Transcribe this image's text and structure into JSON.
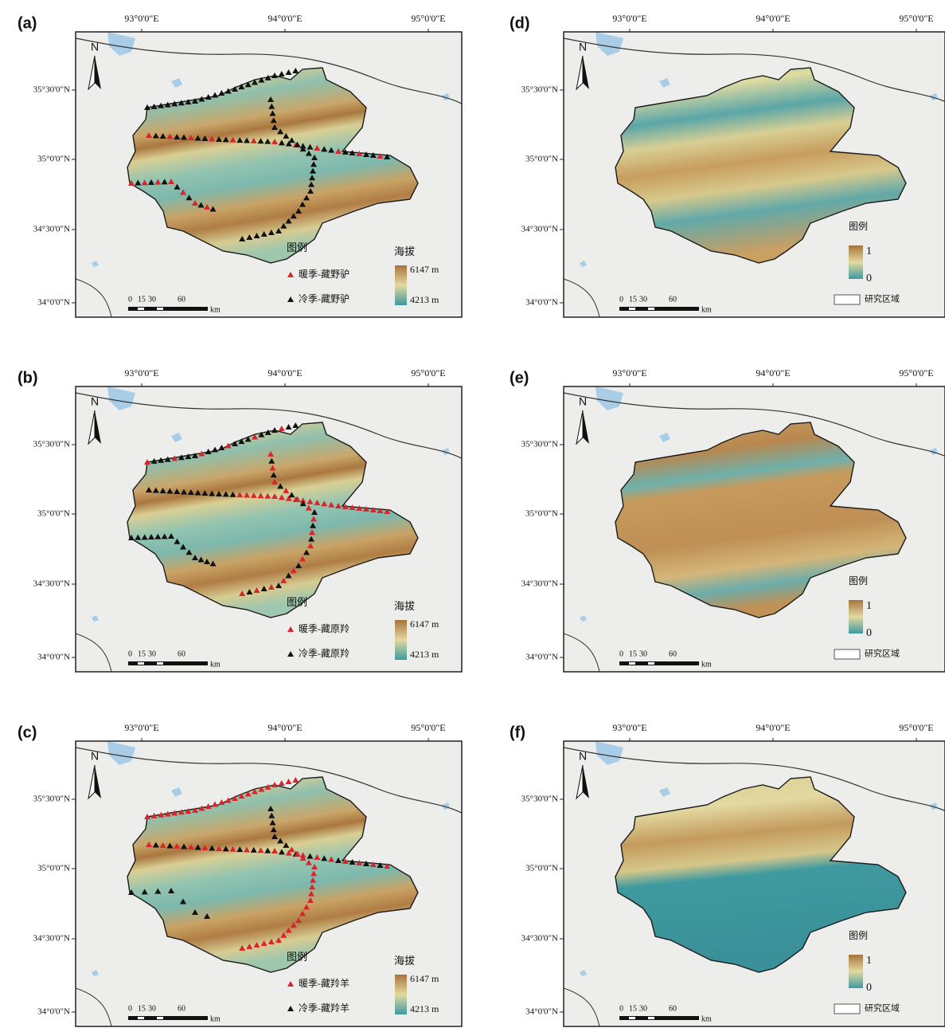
{
  "panels": [
    {
      "label": "(a)",
      "lon_labels": [
        "93°0'0\"E",
        "94°0'0\"E",
        "95°0'0\"E"
      ],
      "lat_labels": [
        "35°30'0\"N",
        "35°0'0\"N",
        "34°30'0\"N",
        "34°0'0\"N"
      ],
      "north": "N",
      "scale": [
        "0",
        "15",
        "30",
        "60",
        "km"
      ],
      "legend": {
        "title": "图例",
        "items": [
          "暖季-藏野驴",
          "冷季-藏野驴"
        ],
        "ramp_title": "海拔",
        "ramp_max": "6147 m",
        "ramp_min": "4213 m"
      }
    },
    {
      "label": "(b)",
      "lon_labels": [
        "93°0'0\"E",
        "94°0'0\"E",
        "95°0'0\"E"
      ],
      "lat_labels": [
        "35°30'0\"N",
        "35°0'0\"N",
        "34°30'0\"N",
        "34°0'0\"N"
      ],
      "north": "N",
      "scale": [
        "0",
        "15",
        "30",
        "60",
        "km"
      ],
      "legend": {
        "title": "图例",
        "items": [
          "暖季-藏原羚",
          "冷季-藏原羚"
        ],
        "ramp_title": "海拔",
        "ramp_max": "6147 m",
        "ramp_min": "4213 m"
      }
    },
    {
      "label": "(c)",
      "lon_labels": [
        "93°0'0\"E",
        "94°0'0\"E",
        "95°0'0\"E"
      ],
      "lat_labels": [
        "35°30'0\"N",
        "35°0'0\"N",
        "34°30'0\"N",
        "34°0'0\"N"
      ],
      "north": "N",
      "scale": [
        "0",
        "15",
        "30",
        "60",
        "km"
      ],
      "legend": {
        "title": "图例",
        "items": [
          "暖季-藏羚羊",
          "冷季-藏羚羊"
        ],
        "ramp_title": "海拔",
        "ramp_max": "6147 m",
        "ramp_min": "4213 m"
      }
    },
    {
      "label": "(d)",
      "lon_labels": [
        "93°0'0\"E",
        "94°0'0\"E",
        "95°0'0\"E"
      ],
      "lat_labels": [
        "35°30'0\"N",
        "35°0'0\"N",
        "34°30'0\"N",
        "34°0'0\"N"
      ],
      "north": "N",
      "scale": [
        "0",
        "15",
        "30",
        "60",
        "km"
      ],
      "legend": {
        "title": "图例",
        "ramp_max": "1",
        "ramp_min": "0",
        "boundary": "研究区域"
      }
    },
    {
      "label": "(e)",
      "lon_labels": [
        "93°0'0\"E",
        "94°0'0\"E",
        "95°0'0\"E"
      ],
      "lat_labels": [
        "35°30'0\"N",
        "35°0'0\"N",
        "34°30'0\"N",
        "34°0'0\"N"
      ],
      "north": "N",
      "scale": [
        "0",
        "15",
        "30",
        "60",
        "km"
      ],
      "legend": {
        "title": "图例",
        "ramp_max": "1",
        "ramp_min": "0",
        "boundary": "研究区域"
      }
    },
    {
      "label": "(f)",
      "lon_labels": [
        "93°0'0\"E",
        "94°0'0\"E",
        "95°0'0\"E"
      ],
      "lat_labels": [
        "35°30'0\"N",
        "35°0'0\"N",
        "34°30'0\"N",
        "34°0'0\"N"
      ],
      "north": "N",
      "scale": [
        "0",
        "15",
        "30",
        "60",
        "km"
      ],
      "legend": {
        "title": "图例",
        "ramp_max": "1",
        "ramp_min": "0",
        "boundary": "研究区域"
      }
    }
  ]
}
